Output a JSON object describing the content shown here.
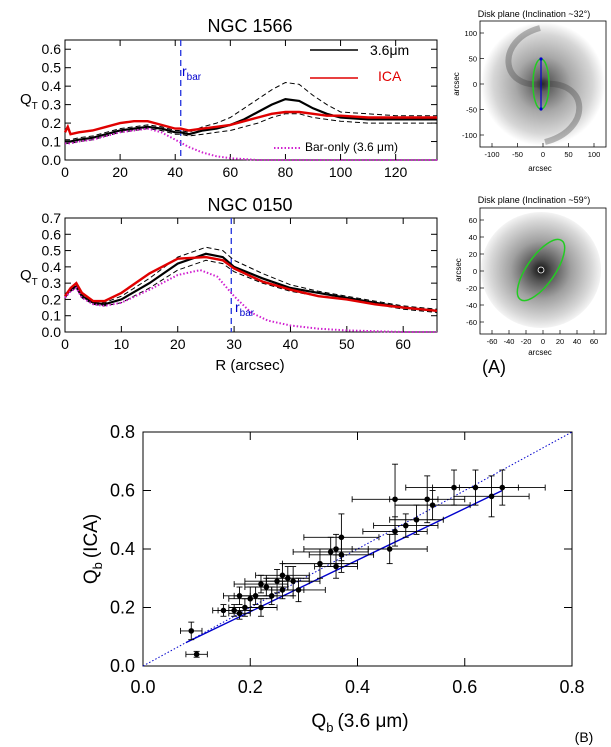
{
  "chart_data": [
    {
      "id": "ngc1566",
      "type": "line",
      "title": "NGC 1566",
      "xlabel": "",
      "ylabel_main": "Q",
      "ylabel_sub": "T",
      "xlim": [
        0,
        135
      ],
      "ylim": [
        0,
        0.65
      ],
      "xticks": [
        0,
        20,
        40,
        60,
        80,
        100,
        120
      ],
      "yticks": [
        0.0,
        0.1,
        0.2,
        0.3,
        0.4,
        0.5,
        0.6
      ],
      "xtick_labels": [
        "0",
        "20",
        "40",
        "60",
        "80",
        "100",
        "120"
      ],
      "ytick_labels": [
        "0.0",
        "0.1",
        "0.2",
        "0.3",
        "0.4",
        "0.5",
        "0.6"
      ],
      "rbar": {
        "x": 42,
        "label": "r",
        "sub": "bar"
      },
      "legend": [
        {
          "label": "3.6μm",
          "color": "#000000"
        },
        {
          "label": "ICA",
          "color": "#e00000"
        }
      ],
      "annotation": "Bar-only (3.6 μm)",
      "series": [
        {
          "name": "3.6μm",
          "color": "#000000",
          "style": "solid",
          "x": [
            0,
            2,
            5,
            10,
            15,
            20,
            25,
            30,
            35,
            40,
            42,
            45,
            50,
            55,
            60,
            65,
            70,
            75,
            80,
            85,
            90,
            95,
            100,
            110,
            120,
            135
          ],
          "y": [
            0.1,
            0.1,
            0.11,
            0.12,
            0.14,
            0.16,
            0.17,
            0.18,
            0.17,
            0.15,
            0.15,
            0.14,
            0.16,
            0.17,
            0.19,
            0.22,
            0.26,
            0.3,
            0.33,
            0.32,
            0.28,
            0.25,
            0.23,
            0.22,
            0.22,
            0.22
          ]
        },
        {
          "name": "3.6μm upper",
          "color": "#000000",
          "style": "dashed",
          "x": [
            0,
            2,
            5,
            10,
            15,
            20,
            25,
            30,
            35,
            40,
            42,
            45,
            50,
            55,
            60,
            65,
            70,
            75,
            80,
            85,
            90,
            95,
            100,
            110,
            120,
            135
          ],
          "y": [
            0.11,
            0.11,
            0.12,
            0.13,
            0.15,
            0.17,
            0.18,
            0.19,
            0.18,
            0.16,
            0.16,
            0.15,
            0.18,
            0.2,
            0.23,
            0.28,
            0.33,
            0.38,
            0.42,
            0.41,
            0.35,
            0.3,
            0.26,
            0.25,
            0.24,
            0.24
          ]
        },
        {
          "name": "3.6μm lower",
          "color": "#000000",
          "style": "dashed",
          "x": [
            0,
            2,
            5,
            10,
            15,
            20,
            25,
            30,
            35,
            40,
            42,
            45,
            50,
            55,
            60,
            65,
            70,
            75,
            80,
            85,
            90,
            95,
            100,
            110,
            120,
            135
          ],
          "y": [
            0.09,
            0.09,
            0.1,
            0.11,
            0.13,
            0.15,
            0.16,
            0.17,
            0.16,
            0.14,
            0.14,
            0.13,
            0.14,
            0.15,
            0.16,
            0.18,
            0.2,
            0.23,
            0.25,
            0.25,
            0.23,
            0.22,
            0.21,
            0.2,
            0.2,
            0.2
          ]
        },
        {
          "name": "ICA",
          "color": "#e00000",
          "style": "solid",
          "x": [
            0,
            1,
            2,
            5,
            10,
            15,
            20,
            25,
            30,
            35,
            40,
            42,
            45,
            50,
            55,
            60,
            65,
            70,
            75,
            80,
            85,
            90,
            95,
            100,
            110,
            120,
            135
          ],
          "y": [
            0.15,
            0.18,
            0.14,
            0.15,
            0.16,
            0.18,
            0.2,
            0.21,
            0.21,
            0.19,
            0.17,
            0.17,
            0.16,
            0.17,
            0.18,
            0.19,
            0.21,
            0.23,
            0.25,
            0.26,
            0.26,
            0.25,
            0.24,
            0.24,
            0.23,
            0.23,
            0.23
          ]
        },
        {
          "name": "Bar-only (3.6 μm)",
          "color": "#d020d0",
          "style": "dotted",
          "x": [
            0,
            2,
            5,
            10,
            15,
            20,
            25,
            30,
            35,
            40,
            45,
            50,
            55,
            60,
            70,
            80,
            100,
            135
          ],
          "y": [
            0.09,
            0.09,
            0.1,
            0.11,
            0.13,
            0.15,
            0.16,
            0.17,
            0.15,
            0.11,
            0.07,
            0.04,
            0.02,
            0.01,
            0.0,
            0.0,
            0.0,
            0.0
          ]
        }
      ]
    },
    {
      "id": "ngc0150",
      "type": "line",
      "title": "NGC 0150",
      "xlabel": "R (arcsec)",
      "ylabel_main": "Q",
      "ylabel_sub": "T",
      "xlim": [
        0,
        66
      ],
      "ylim": [
        0,
        0.7
      ],
      "xticks": [
        0,
        10,
        20,
        30,
        40,
        50,
        60
      ],
      "yticks": [
        0.0,
        0.1,
        0.2,
        0.3,
        0.4,
        0.5,
        0.6,
        0.7
      ],
      "xtick_labels": [
        "0",
        "10",
        "20",
        "30",
        "40",
        "50",
        "60"
      ],
      "ytick_labels": [
        "0.0",
        "0.1",
        "0.2",
        "0.3",
        "0.4",
        "0.5",
        "0.6",
        "0.7"
      ],
      "rbar": {
        "x": 29.5,
        "label": "r",
        "sub": "bar"
      },
      "series": [
        {
          "name": "3.6μm",
          "color": "#000000",
          "style": "solid",
          "x": [
            0,
            1,
            2,
            3,
            5,
            7,
            10,
            15,
            20,
            25,
            28,
            30,
            35,
            40,
            45,
            50,
            55,
            60,
            66
          ],
          "y": [
            0.22,
            0.26,
            0.28,
            0.22,
            0.18,
            0.17,
            0.2,
            0.3,
            0.42,
            0.48,
            0.46,
            0.4,
            0.33,
            0.27,
            0.24,
            0.21,
            0.18,
            0.15,
            0.13
          ]
        },
        {
          "name": "3.6μm upper",
          "color": "#000000",
          "style": "dashed",
          "x": [
            0,
            1,
            2,
            3,
            5,
            7,
            10,
            15,
            20,
            25,
            28,
            30,
            35,
            40,
            45,
            50,
            55,
            60,
            66
          ],
          "y": [
            0.23,
            0.27,
            0.29,
            0.23,
            0.19,
            0.18,
            0.22,
            0.33,
            0.46,
            0.52,
            0.5,
            0.44,
            0.36,
            0.29,
            0.25,
            0.22,
            0.19,
            0.16,
            0.14
          ]
        },
        {
          "name": "3.6μm lower",
          "color": "#000000",
          "style": "dashed",
          "x": [
            0,
            1,
            2,
            3,
            5,
            7,
            10,
            15,
            20,
            25,
            28,
            30,
            35,
            40,
            45,
            50,
            55,
            60,
            66
          ],
          "y": [
            0.21,
            0.25,
            0.27,
            0.21,
            0.17,
            0.16,
            0.18,
            0.27,
            0.38,
            0.44,
            0.42,
            0.37,
            0.3,
            0.25,
            0.22,
            0.2,
            0.17,
            0.14,
            0.12
          ]
        },
        {
          "name": "ICA",
          "color": "#e00000",
          "style": "solid",
          "x": [
            0,
            1,
            2,
            3,
            5,
            7,
            10,
            15,
            20,
            25,
            28,
            30,
            35,
            40,
            45,
            50,
            55,
            60,
            66
          ],
          "y": [
            0.22,
            0.27,
            0.3,
            0.24,
            0.19,
            0.19,
            0.24,
            0.36,
            0.45,
            0.46,
            0.44,
            0.39,
            0.31,
            0.26,
            0.22,
            0.2,
            0.17,
            0.15,
            0.13
          ]
        },
        {
          "name": "Bar-only (3.6 μm)",
          "color": "#d020d0",
          "style": "dotted",
          "x": [
            0,
            1,
            2,
            3,
            5,
            7,
            10,
            15,
            20,
            24,
            27,
            30,
            33,
            36,
            40,
            45,
            50,
            55,
            60,
            66
          ],
          "y": [
            0.21,
            0.25,
            0.27,
            0.21,
            0.17,
            0.16,
            0.18,
            0.26,
            0.35,
            0.38,
            0.34,
            0.22,
            0.12,
            0.07,
            0.04,
            0.02,
            0.01,
            0.005,
            0.0,
            0.0
          ]
        }
      ]
    },
    {
      "id": "qb",
      "type": "scatter",
      "xlabel_main": "Q",
      "xlabel_sub": "b",
      "xlabel_tail": "(3.6 μm)",
      "ylabel_main": "Q",
      "ylabel_sub": "b",
      "ylabel_tail": "(ICA)",
      "xlim": [
        0,
        0.8
      ],
      "ylim": [
        0,
        0.8
      ],
      "xticks": [
        0.0,
        0.2,
        0.4,
        0.6,
        0.8
      ],
      "yticks": [
        0.0,
        0.2,
        0.4,
        0.6,
        0.8
      ],
      "xtick_labels": [
        "0.0",
        "0.2",
        "0.4",
        "0.6",
        "0.8"
      ],
      "ytick_labels": [
        "0.0",
        "0.2",
        "0.4",
        "0.6",
        "0.8"
      ],
      "fit_line": {
        "x": [
          0.08,
          0.67
        ],
        "y": [
          0.08,
          0.6
        ],
        "color": "#0000cc"
      },
      "one_to_one": {
        "x": [
          0,
          0.8
        ],
        "y": [
          0,
          0.8
        ],
        "color": "#0000cc"
      },
      "corner_label": "(B)",
      "points": [
        {
          "x": 0.09,
          "y": 0.12,
          "xe": 0.02,
          "ye": 0.03
        },
        {
          "x": 0.1,
          "y": 0.04,
          "xe": 0.02,
          "ye": 0.01
        },
        {
          "x": 0.15,
          "y": 0.19,
          "xe": 0.02,
          "ye": 0.02
        },
        {
          "x": 0.17,
          "y": 0.19,
          "xe": 0.03,
          "ye": 0.02
        },
        {
          "x": 0.18,
          "y": 0.24,
          "xe": 0.03,
          "ye": 0.03
        },
        {
          "x": 0.18,
          "y": 0.18,
          "xe": 0.02,
          "ye": 0.02
        },
        {
          "x": 0.19,
          "y": 0.2,
          "xe": 0.03,
          "ye": 0.03
        },
        {
          "x": 0.2,
          "y": 0.23,
          "xe": 0.04,
          "ye": 0.04
        },
        {
          "x": 0.21,
          "y": 0.24,
          "xe": 0.04,
          "ye": 0.03
        },
        {
          "x": 0.22,
          "y": 0.2,
          "xe": 0.03,
          "ye": 0.03
        },
        {
          "x": 0.22,
          "y": 0.28,
          "xe": 0.05,
          "ye": 0.03
        },
        {
          "x": 0.23,
          "y": 0.27,
          "xe": 0.04,
          "ye": 0.03
        },
        {
          "x": 0.24,
          "y": 0.24,
          "xe": 0.04,
          "ye": 0.03
        },
        {
          "x": 0.25,
          "y": 0.29,
          "xe": 0.06,
          "ye": 0.04
        },
        {
          "x": 0.26,
          "y": 0.31,
          "xe": 0.05,
          "ye": 0.04
        },
        {
          "x": 0.26,
          "y": 0.26,
          "xe": 0.04,
          "ye": 0.03
        },
        {
          "x": 0.27,
          "y": 0.3,
          "xe": 0.04,
          "ye": 0.04
        },
        {
          "x": 0.28,
          "y": 0.29,
          "xe": 0.05,
          "ye": 0.05
        },
        {
          "x": 0.29,
          "y": 0.26,
          "xe": 0.05,
          "ye": 0.04
        },
        {
          "x": 0.33,
          "y": 0.35,
          "xe": 0.07,
          "ye": 0.05
        },
        {
          "x": 0.35,
          "y": 0.39,
          "xe": 0.07,
          "ye": 0.05
        },
        {
          "x": 0.36,
          "y": 0.4,
          "xe": 0.06,
          "ye": 0.05
        },
        {
          "x": 0.36,
          "y": 0.34,
          "xe": 0.04,
          "ye": 0.04
        },
        {
          "x": 0.37,
          "y": 0.38,
          "xe": 0.06,
          "ye": 0.06
        },
        {
          "x": 0.37,
          "y": 0.44,
          "xe": 0.07,
          "ye": 0.08
        },
        {
          "x": 0.46,
          "y": 0.4,
          "xe": 0.07,
          "ye": 0.05
        },
        {
          "x": 0.47,
          "y": 0.46,
          "xe": 0.06,
          "ye": 0.05
        },
        {
          "x": 0.47,
          "y": 0.57,
          "xe": 0.08,
          "ye": 0.12
        },
        {
          "x": 0.49,
          "y": 0.48,
          "xe": 0.06,
          "ye": 0.04
        },
        {
          "x": 0.51,
          "y": 0.5,
          "xe": 0.05,
          "ye": 0.05
        },
        {
          "x": 0.53,
          "y": 0.57,
          "xe": 0.07,
          "ye": 0.08
        },
        {
          "x": 0.54,
          "y": 0.55,
          "xe": 0.07,
          "ye": 0.05
        },
        {
          "x": 0.58,
          "y": 0.61,
          "xe": 0.09,
          "ye": 0.06
        },
        {
          "x": 0.62,
          "y": 0.61,
          "xe": 0.08,
          "ye": 0.06
        },
        {
          "x": 0.65,
          "y": 0.58,
          "xe": 0.07,
          "ye": 0.07
        },
        {
          "x": 0.67,
          "y": 0.61,
          "xe": 0.08,
          "ye": 0.06
        }
      ]
    }
  ],
  "disk_panels": [
    {
      "title": "Disk plane (Inclination ~32°)",
      "xlabel": "arcsec",
      "ylabel": "arcsec",
      "xtick_labels": [
        "-100",
        "-50",
        "0",
        "50",
        "100"
      ],
      "ytick_labels": [
        "100",
        "50",
        "0",
        "-50",
        "-100"
      ],
      "ellipse_angle": 0,
      "ellipse_aspect": 0.35
    },
    {
      "title": "Disk plane (Inclination ~59°)",
      "xlabel": "arcsec",
      "ylabel": "arcsec",
      "xtick_labels": [
        "-60",
        "-40",
        "-20",
        "0",
        "20",
        "40",
        "60"
      ],
      "ytick_labels": [
        "60",
        "40",
        "20",
        "0",
        "-20",
        "-40",
        "-60"
      ],
      "ellipse_angle": -35,
      "ellipse_aspect": 0.38
    }
  ],
  "panel_label_a": "(A)"
}
